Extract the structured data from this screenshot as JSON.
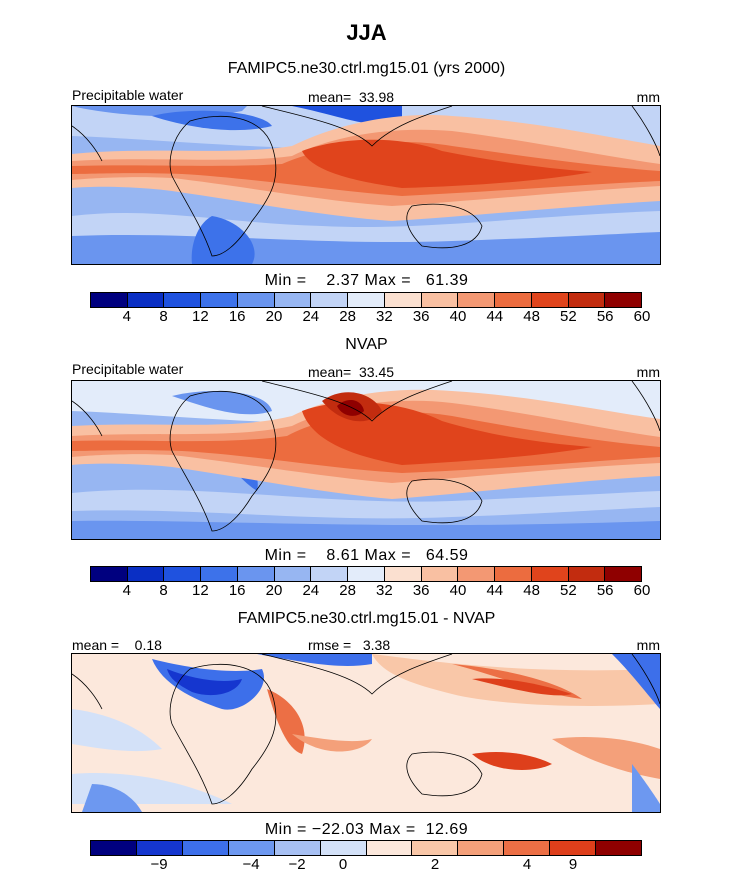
{
  "title": "JJA",
  "colors": {
    "scale": [
      "#00007f",
      "#0a2fc4",
      "#1f52df",
      "#3d72ea",
      "#6a95ef",
      "#97b6f2",
      "#c2d4f6",
      "#e3ecfa",
      "#fbe0d0",
      "#f9c0a2",
      "#f39873",
      "#ec6c3f",
      "#e0441c",
      "#c22c0f",
      "#8f0000"
    ],
    "diff_scale": [
      "#00007f",
      "#1536cf",
      "#3d6fea",
      "#6d98f0",
      "#a7c0f3",
      "#d3e1f8",
      "#fce8dc",
      "#f9c7a8",
      "#f4a07a",
      "#ec6f45",
      "#de3f1b",
      "#8f0000"
    ]
  },
  "chart_data": [
    {
      "type": "heatmap",
      "title": "FAMIPC5.ne30.ctrl.mg15.01 (yrs 2000)",
      "variable": "Precipitable water",
      "units": "mm",
      "mean_label": "mean=",
      "mean": "33.98",
      "min_label": "Min =",
      "min": "2.37",
      "max_label": "Max =",
      "max": "61.39",
      "colorbar_ticks": [
        "4",
        "8",
        "12",
        "16",
        "20",
        "24",
        "28",
        "32",
        "36",
        "40",
        "44",
        "48",
        "52",
        "56",
        "60"
      ]
    },
    {
      "type": "heatmap",
      "title": "NVAP",
      "variable": "Precipitable water",
      "units": "mm",
      "mean_label": "mean=",
      "mean": "33.45",
      "min_label": "Min =",
      "min": "8.61",
      "max_label": "Max =",
      "max": "64.59",
      "colorbar_ticks": [
        "4",
        "8",
        "12",
        "16",
        "20",
        "24",
        "28",
        "32",
        "36",
        "40",
        "44",
        "48",
        "52",
        "56",
        "60"
      ]
    },
    {
      "type": "heatmap",
      "title": "FAMIPC5.ne30.ctrl.mg15.01 - NVAP",
      "units": "mm",
      "mean_label": "mean =",
      "mean": "0.18",
      "rmse_label": "rmse =",
      "rmse": "3.38",
      "min_label": "Min =",
      "min": "−22.03",
      "max_label": "Max =",
      "max": "12.69",
      "colorbar_ticks": [
        "−9",
        "−4",
        "−2",
        "0",
        "2",
        "4",
        "9"
      ]
    }
  ]
}
